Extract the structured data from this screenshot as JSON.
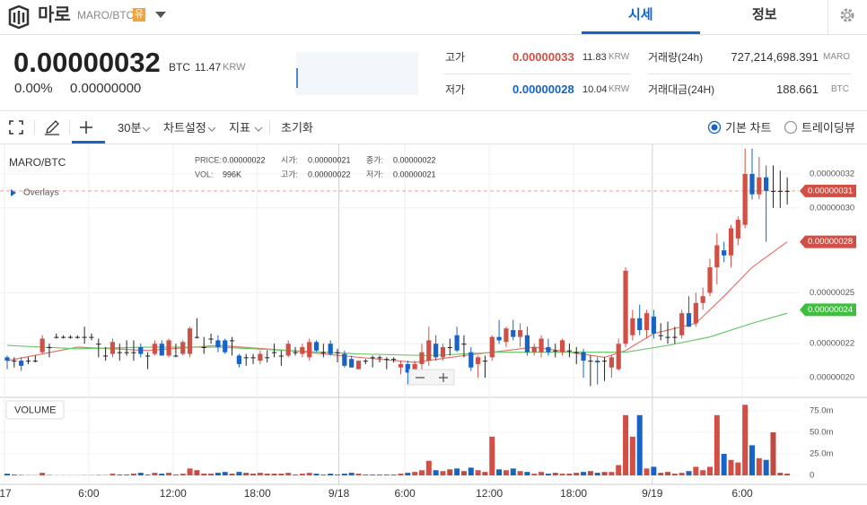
{
  "header": {
    "name": "마로",
    "pair": "MARO/BTC",
    "badge": "유",
    "tabs": [
      "시세",
      "정보"
    ]
  },
  "price_panel": {
    "price": "0.00000032",
    "unit": "BTC",
    "krw": "11.47",
    "krw_unit": "KRW",
    "change_rate": "0.00%",
    "change": "0.00000000",
    "high": {
      "label": "고가",
      "value": "0.00000033",
      "krw": "11.83",
      "krw_unit": "KRW"
    },
    "low": {
      "label": "저가",
      "value": "0.00000028",
      "krw": "10.04",
      "krw_unit": "KRW"
    },
    "volume": {
      "label": "거래량(24h)",
      "value": "727,214,698.391",
      "unit": "MARO"
    },
    "amount": {
      "label": "거래대금(24H)",
      "value": "188.661",
      "unit": "BTC"
    }
  },
  "toolbar": {
    "interval": "30분",
    "items": [
      "차트설정",
      "지표",
      "초기화"
    ],
    "modes": [
      "기본 차트",
      "트레이딩뷰"
    ],
    "selected_mode": 0
  },
  "chart_data": {
    "type": "candlestick",
    "title": "MARO/BTC",
    "overlays": "Overlays",
    "volume_label": "VOLUME",
    "info": [
      [
        {
          "label": "PRICE:",
          "value": "0.00000022"
        },
        {
          "label": "시가:",
          "value": "0.00000021"
        },
        {
          "label": "종가:",
          "value": "0.00000022"
        }
      ],
      [
        {
          "label": "VOL:",
          "value": "996K"
        },
        {
          "label": "고가:",
          "value": "0.00000022"
        },
        {
          "label": "저가:",
          "value": "0.00000021"
        }
      ]
    ],
    "up_color": "#d24f45",
    "down_color": "#1763c6",
    "ylim": [
      1.884e-07,
      3.374e-07
    ],
    "yticks": [
      {
        "value": 3.2e-07,
        "label": "0.00000032"
      },
      {
        "value": 3e-07,
        "label": "0.00000030"
      },
      {
        "value": 2.5e-07,
        "label": "0.00000025"
      },
      {
        "value": 2.2e-07,
        "label": "0.00000022"
      },
      {
        "value": 2e-07,
        "label": "0.00000020"
      }
    ],
    "vlim": [
      0,
      85
    ],
    "vticks": [
      {
        "value": 75,
        "label": "75.0m"
      },
      {
        "value": 50,
        "label": "50.0m"
      },
      {
        "value": 25,
        "label": "25.0m"
      },
      0
    ],
    "xticks": [
      {
        "value": -0.4,
        "label": "17"
      },
      {
        "value": 11.6,
        "label": "6:00"
      },
      {
        "value": 23.6,
        "label": "12:00"
      },
      {
        "value": 35.6,
        "label": "18:00"
      },
      {
        "value": 47.2,
        "label": "9/18"
      },
      {
        "value": 56.6,
        "label": "6:00"
      },
      {
        "value": 68.6,
        "label": "12:00"
      },
      {
        "value": 80.6,
        "label": "18:00"
      },
      {
        "value": 91.8,
        "label": "9/19"
      },
      {
        "value": 104.6,
        "label": "6:00"
      }
    ],
    "price_tags": [
      {
        "value": 3.1e-07,
        "label": "0.00000031",
        "color": "#d24f45",
        "dashed_line": true
      },
      {
        "value": 2.8e-07,
        "label": "0.00000028",
        "color": "#d24f45"
      },
      {
        "value": 2.4e-07,
        "label": "0.00000024",
        "color": "#3fbf3f"
      }
    ],
    "candles": [
      [
        2.12e-07,
        2.13e-07,
        2.05e-07,
        2.1e-07
      ],
      [
        2.1e-07,
        2.12e-07,
        2.06e-07,
        2.1e-07
      ],
      [
        2.1e-07,
        2.12e-07,
        2.04e-07,
        2.07e-07
      ],
      [
        2.1e-07,
        2.12e-07,
        2.08e-07,
        2.1e-07
      ],
      [
        2.1e-07,
        2.13e-07,
        2.09e-07,
        2.1e-07
      ],
      [
        2.15e-07,
        2.25e-07,
        2.14e-07,
        2.23e-07
      ],
      [
        2.18e-07,
        2.2e-07,
        2.12e-07,
        2.18e-07
      ],
      [
        2.24e-07,
        2.26e-07,
        2.23e-07,
        2.24e-07
      ],
      [
        2.24e-07,
        2.25e-07,
        2.23e-07,
        2.24e-07
      ],
      [
        2.24e-07,
        2.25e-07,
        2.23e-07,
        2.24e-07
      ],
      [
        2.24e-07,
        2.25e-07,
        2.23e-07,
        2.24e-07
      ],
      [
        2.24e-07,
        2.3e-07,
        2.2e-07,
        2.24e-07
      ],
      [
        2.24e-07,
        2.26e-07,
        2.22e-07,
        2.24e-07
      ],
      [
        2.2e-07,
        2.23e-07,
        2.12e-07,
        2.2e-07
      ],
      [
        2.13e-07,
        2.18e-07,
        2.1e-07,
        2.13e-07
      ],
      [
        2.14e-07,
        2.23e-07,
        2.12e-07,
        2.21e-07
      ],
      [
        2.15e-07,
        2.2e-07,
        2.1e-07,
        2.15e-07
      ],
      [
        2.15e-07,
        2.22e-07,
        2.13e-07,
        2.15e-07
      ],
      [
        2.15e-07,
        2.22e-07,
        2.1e-07,
        2.15e-07
      ],
      [
        2.18e-07,
        2.2e-07,
        2.12e-07,
        2.14e-07
      ],
      [
        2.13e-07,
        2.15e-07,
        2.05e-07,
        2.13e-07
      ],
      [
        2.14e-07,
        2.22e-07,
        2.13e-07,
        2.2e-07
      ],
      [
        2.2e-07,
        2.22e-07,
        2.13e-07,
        2.13e-07
      ],
      [
        2.13e-07,
        2.23e-07,
        2.12e-07,
        2.22e-07
      ],
      [
        2.13e-07,
        2.2e-07,
        2.12e-07,
        2.13e-07
      ],
      [
        2.14e-07,
        2.22e-07,
        2.13e-07,
        2.21e-07
      ],
      [
        2.14e-07,
        2.3e-07,
        2.12e-07,
        2.29e-07
      ],
      [
        2.24e-07,
        2.35e-07,
        2.23e-07,
        2.24e-07
      ],
      [
        2.18e-07,
        2.24e-07,
        2.14e-07,
        2.18e-07
      ],
      [
        2.23e-07,
        2.26e-07,
        2.2e-07,
        2.23e-07
      ],
      [
        2.22e-07,
        2.25e-07,
        2.15e-07,
        2.18e-07
      ],
      [
        2.22e-07,
        2.23e-07,
        2.14e-07,
        2.15e-07
      ],
      [
        2.22e-07,
        2.24e-07,
        2.13e-07,
        2.22e-07
      ],
      [
        2.13e-07,
        2.14e-07,
        2.06e-07,
        2.08e-07
      ],
      [
        2.12e-07,
        2.14e-07,
        2.07e-07,
        2.12e-07
      ],
      [
        2.12e-07,
        2.14e-07,
        2.08e-07,
        2.12e-07
      ],
      [
        2.1e-07,
        2.16e-07,
        2.08e-07,
        2.14e-07
      ],
      [
        2.12e-07,
        2.16e-07,
        2.09e-07,
        2.12e-07
      ],
      [
        2.15e-07,
        2.2e-07,
        2.12e-07,
        2.15e-07
      ],
      [
        2.13e-07,
        2.16e-07,
        2.07e-07,
        2.13e-07
      ],
      [
        2.13e-07,
        2.22e-07,
        2.12e-07,
        2.2e-07
      ],
      [
        2.15e-07,
        2.18e-07,
        2.13e-07,
        2.15e-07
      ],
      [
        2.14e-07,
        2.2e-07,
        2.12e-07,
        2.18e-07
      ],
      [
        2.12e-07,
        2.23e-07,
        2.1e-07,
        2.21e-07
      ],
      [
        2.21e-07,
        2.22e-07,
        2.15e-07,
        2.16e-07
      ],
      [
        2.15e-07,
        2.2e-07,
        2.12e-07,
        2.15e-07
      ],
      [
        2.2e-07,
        2.22e-07,
        2.13e-07,
        2.14e-07
      ],
      [
        2.15e-07,
        2.17e-07,
        2.09e-07,
        2.15e-07
      ],
      [
        2.14e-07,
        2.16e-07,
        2.06e-07,
        2.07e-07
      ],
      [
        2.11e-07,
        2.13e-07,
        2.06e-07,
        2.06e-07
      ],
      [
        2.05e-07,
        2.1e-07,
        2.05e-07,
        2.1e-07
      ],
      [
        2.1e-07,
        2.11e-07,
        2.08e-07,
        2.1e-07
      ],
      [
        2.12e-07,
        2.13e-07,
        2.06e-07,
        2.12e-07
      ],
      [
        2.12e-07,
        2.13e-07,
        2.09e-07,
        2.12e-07
      ],
      [
        2.11e-07,
        2.12e-07,
        2.05e-07,
        2.11e-07
      ],
      [
        2.11e-07,
        2.12e-07,
        2.09e-07,
        2.11e-07
      ],
      [
        2.06e-07,
        2.1e-07,
        2.02e-07,
        2.08e-07
      ],
      [
        2.08e-07,
        2.1e-07,
        1.96e-07,
        2.03e-07
      ],
      [
        2.02e-07,
        2.1e-07,
        1.96e-07,
        2.08e-07
      ],
      [
        2.08e-07,
        2.2e-07,
        2.05e-07,
        2.15e-07
      ],
      [
        2.1e-07,
        2.3e-07,
        2.07e-07,
        2.22e-07
      ],
      [
        2.2e-07,
        2.25e-07,
        2.1e-07,
        2.12e-07
      ],
      [
        2.12e-07,
        2.2e-07,
        2.1e-07,
        2.18e-07
      ],
      [
        2.18e-07,
        2.23e-07,
        2.13e-07,
        2.18e-07
      ],
      [
        2.25e-07,
        2.3e-07,
        2.15e-07,
        2.16e-07
      ],
      [
        2.2e-07,
        2.25e-07,
        2.12e-07,
        2.2e-07
      ],
      [
        2.15e-07,
        2.18e-07,
        2.04e-07,
        2.06e-07
      ],
      [
        2.08e-07,
        2.13e-07,
        2e-07,
        2.12e-07
      ],
      [
        2.1e-07,
        2.13e-07,
        2e-07,
        2.1e-07
      ],
      [
        2.12e-07,
        2.25e-07,
        2.1e-07,
        2.24e-07
      ],
      [
        2.24e-07,
        2.34e-07,
        2.2e-07,
        2.22e-07
      ],
      [
        2.21e-07,
        2.3e-07,
        2.18e-07,
        2.29e-07
      ],
      [
        2.28e-07,
        2.34e-07,
        2.22e-07,
        2.24e-07
      ],
      [
        2.24e-07,
        2.32e-07,
        2.18e-07,
        2.28e-07
      ],
      [
        2.25e-07,
        2.3e-07,
        2.13e-07,
        2.15e-07
      ],
      [
        2.15e-07,
        2.2e-07,
        2.13e-07,
        2.18e-07
      ],
      [
        2.15e-07,
        2.25e-07,
        2.12e-07,
        2.23e-07
      ],
      [
        2.18e-07,
        2.23e-07,
        2.13e-07,
        2.15e-07
      ],
      [
        2.16e-07,
        2.2e-07,
        2.12e-07,
        2.16e-07
      ],
      [
        2.15e-07,
        2.23e-07,
        2.13e-07,
        2.22e-07
      ],
      [
        2.16e-07,
        2.2e-07,
        2.12e-07,
        2.16e-07
      ],
      [
        2.15e-07,
        2.18e-07,
        2.08e-07,
        2.15e-07
      ],
      [
        2.15e-07,
        2.17e-07,
        2e-07,
        2.1e-07
      ],
      [
        2.1e-07,
        2.13e-07,
        1.95e-07,
        2.1e-07
      ],
      [
        2.1e-07,
        2.12e-07,
        1.96e-07,
        2.09e-07
      ],
      [
        2.1e-07,
        2.12e-07,
        1.98e-07,
        2.1e-07
      ],
      [
        2.06e-07,
        2.13e-07,
        2e-07,
        2.12e-07
      ],
      [
        2.05e-07,
        2.23e-07,
        2.04e-07,
        2.2e-07
      ],
      [
        2.2e-07,
        2.65e-07,
        2.18e-07,
        2.63e-07
      ],
      [
        2.25e-07,
        2.4e-07,
        2.22e-07,
        2.35e-07
      ],
      [
        2.35e-07,
        2.43e-07,
        2.25e-07,
        2.28e-07
      ],
      [
        2.28e-07,
        2.4e-07,
        2.23e-07,
        2.38e-07
      ],
      [
        2.36e-07,
        2.4e-07,
        2.23e-07,
        2.26e-07
      ],
      [
        2.25e-07,
        2.32e-07,
        2.22e-07,
        2.25e-07
      ],
      [
        2.24e-07,
        2.33e-07,
        2.2e-07,
        2.24e-07
      ],
      [
        2.24e-07,
        2.3e-07,
        2.2e-07,
        2.24e-07
      ],
      [
        2.25e-07,
        2.4e-07,
        2.23e-07,
        2.38e-07
      ],
      [
        2.38e-07,
        2.48e-07,
        2.3e-07,
        2.3e-07
      ],
      [
        2.32e-07,
        2.5e-07,
        2.3e-07,
        2.44e-07
      ],
      [
        2.44e-07,
        2.53e-07,
        2.4e-07,
        2.48e-07
      ],
      [
        2.5e-07,
        2.7e-07,
        2.48e-07,
        2.65e-07
      ],
      [
        2.65e-07,
        2.85e-07,
        2.55e-07,
        2.78e-07
      ],
      [
        2.75e-07,
        2.8e-07,
        2.68e-07,
        2.72e-07
      ],
      [
        2.72e-07,
        2.9e-07,
        2.65e-07,
        2.88e-07
      ],
      [
        2.82e-07,
        2.95e-07,
        2.78e-07,
        2.93e-07
      ],
      [
        2.9e-07,
        3.35e-07,
        2.88e-07,
        3.2e-07
      ],
      [
        3.2e-07,
        3.35e-07,
        3.05e-07,
        3.08e-07
      ],
      [
        3.08e-07,
        3.3e-07,
        3.05e-07,
        3.18e-07
      ],
      [
        3.18e-07,
        3.25e-07,
        2.8e-07,
        3.1e-07
      ],
      [
        3.1e-07,
        3.25e-07,
        3e-07,
        3.1e-07
      ],
      [
        3.1e-07,
        3.22e-07,
        3e-07,
        3.1e-07
      ],
      [
        3.1e-07,
        3.18e-07,
        3.02e-07,
        3.1e-07
      ]
    ],
    "volumes": [
      2,
      1,
      0.5,
      0.3,
      0.3,
      3,
      0.5,
      0.2,
      0.2,
      0.2,
      0.2,
      0.3,
      0.3,
      0.5,
      0.4,
      2,
      1,
      1,
      2,
      3,
      1,
      3,
      2,
      3,
      1,
      2,
      8,
      6,
      2,
      2,
      3,
      4,
      2,
      4,
      3,
      2,
      3,
      2,
      2,
      2,
      3,
      1,
      2,
      3,
      2,
      1,
      2,
      1,
      2,
      3,
      2,
      1,
      1,
      1,
      1,
      1,
      2,
      3,
      4,
      6,
      17,
      6,
      5,
      7,
      8,
      5,
      9,
      6,
      4,
      45,
      7,
      6,
      8,
      5,
      4,
      2,
      4,
      2,
      3,
      2,
      2,
      3,
      4,
      5,
      3,
      4,
      4,
      12,
      70,
      45,
      70,
      8,
      10,
      3,
      4,
      2,
      3,
      5,
      10,
      6,
      10,
      70,
      25,
      18,
      15,
      82,
      35,
      20,
      18,
      50,
      3,
      2
    ],
    "ma": [
      {
        "color": "#e8756b",
        "x": [
          0,
          10,
          20,
          30,
          40,
          50,
          58,
          65,
          75,
          85,
          88,
          92,
          98,
          102,
          106,
          111
        ],
        "values": [
          2.1e-07,
          2.18e-07,
          2.16e-07,
          2.19e-07,
          2.16e-07,
          2.12e-07,
          2.09e-07,
          2.13e-07,
          2.18e-07,
          2.12e-07,
          2.16e-07,
          2.26e-07,
          2.32e-07,
          2.48e-07,
          2.65e-07,
          2.8e-07
        ]
      },
      {
        "color": "#6cc96c",
        "x": [
          0,
          10,
          20,
          30,
          40,
          50,
          60,
          70,
          80,
          88,
          94,
          100,
          106,
          111
        ],
        "values": [
          2.19e-07,
          2.17e-07,
          2.18e-07,
          2.18e-07,
          2.16e-07,
          2.14e-07,
          2.13e-07,
          2.15e-07,
          2.15e-07,
          2.15e-07,
          2.19e-07,
          2.24e-07,
          2.32e-07,
          2.38e-07
        ]
      }
    ]
  }
}
